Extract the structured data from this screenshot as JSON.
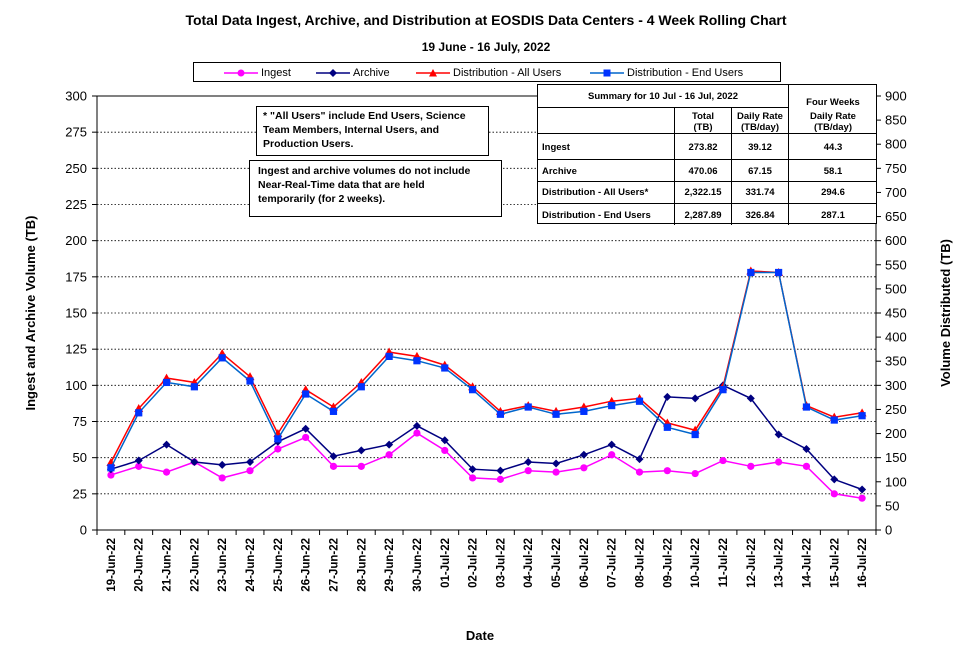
{
  "title": "Total Data Ingest, Archive, and  Distribution at EOSDIS Data Centers - 4 Week Rolling Chart",
  "subtitle": "19  June   -  16  July,  2022",
  "legend": {
    "ingest": "Ingest",
    "archive": "Archive",
    "dist_all": "Distribution - All Users",
    "dist_end": "Distribution - End Users"
  },
  "notes": {
    "note1": [
      "* \"All Users\" include End Users, Science",
      "Team Members,  Internal Users, and",
      "Production Users."
    ],
    "note2": [
      "Ingest and archive volumes do not include",
      "Near-Real-Time data that are held",
      "temporarily (for 2 weeks)."
    ]
  },
  "summary": {
    "title": "Summary for  10 Jul  -  16 Jul, 2022",
    "four_weeks": "Four Weeks",
    "col_total": [
      "Total",
      "(TB)"
    ],
    "col_daily": [
      "Daily Rate",
      "(TB/day)"
    ],
    "col_four": [
      "Daily Rate",
      "(TB/day)"
    ],
    "rows": [
      {
        "label": "Ingest",
        "total": "273.82",
        "daily": "39.12",
        "four": "44.3"
      },
      {
        "label": "Archive",
        "total": "470.06",
        "daily": "67.15",
        "four": "58.1"
      },
      {
        "label": "Distribution - All Users*",
        "total": "2,322.15",
        "daily": "331.74",
        "four": "294.6"
      },
      {
        "label": "Distribution - End Users",
        "total": "2,287.89",
        "daily": "326.84",
        "four": "287.1"
      }
    ]
  },
  "colors": {
    "ingest": "#FF00FF",
    "archive": "#000080",
    "dist_all_line": "#FF0000",
    "dist_all_marker": "#FF0000",
    "dist_end_line": "#0066CC",
    "dist_end_marker": "#0033FF"
  },
  "chart_data": {
    "type": "line",
    "xlabel": "Date",
    "ylabel": "Ingest and Archive Volume (TB)",
    "y2label": "Volume Distributed (TB)",
    "ylim": [
      0,
      300
    ],
    "y2lim": [
      0,
      900
    ],
    "yticks": [
      0,
      25,
      50,
      75,
      100,
      125,
      150,
      175,
      200,
      225,
      250,
      275,
      300
    ],
    "y2ticks": [
      0,
      50,
      100,
      150,
      200,
      250,
      300,
      350,
      400,
      450,
      500,
      550,
      600,
      650,
      700,
      750,
      800,
      850,
      900
    ],
    "grid": "horizontal dotted",
    "legend_position": "top",
    "categories": [
      "19-Jun-22",
      "20-Jun-22",
      "21-Jun-22",
      "22-Jun-22",
      "23-Jun-22",
      "24-Jun-22",
      "25-Jun-22",
      "26-Jun-22",
      "27-Jun-22",
      "28-Jun-22",
      "29-Jun-22",
      "30-Jun-22",
      "01-Jul-22",
      "02-Jul-22",
      "03-Jul-22",
      "04-Jul-22",
      "05-Jul-22",
      "06-Jul-22",
      "07-Jul-22",
      "08-Jul-22",
      "09-Jul-22",
      "10-Jul-22",
      "11-Jul-22",
      "12-Jul-22",
      "13-Jul-22",
      "14-Jul-22",
      "15-Jul-22",
      "16-Jul-22"
    ],
    "series": [
      {
        "name": "Ingest",
        "axis": "left",
        "values": [
          38,
          44,
          40,
          47,
          36,
          41,
          56,
          64,
          44,
          44,
          52,
          67,
          55,
          36,
          35,
          41,
          40,
          43,
          52,
          40,
          41,
          39,
          48,
          44,
          47,
          44,
          25,
          22
        ]
      },
      {
        "name": "Archive",
        "axis": "left",
        "values": [
          42,
          48,
          59,
          47,
          45,
          47,
          61,
          70,
          51,
          55,
          59,
          72,
          62,
          42,
          41,
          47,
          46,
          52,
          59,
          49,
          92,
          91,
          100,
          91,
          66,
          56,
          35,
          28
        ]
      },
      {
        "name": "Distribution - All Users",
        "axis": "right",
        "values": [
          140,
          252,
          315,
          306,
          366,
          318,
          200,
          291,
          255,
          306,
          369,
          360,
          342,
          297,
          246,
          258,
          246,
          255,
          267,
          273,
          222,
          207,
          297,
          537,
          534,
          258,
          234,
          243
        ]
      },
      {
        "name": "Distribution - End Users",
        "axis": "right",
        "values": [
          129,
          243,
          306,
          297,
          357,
          309,
          189,
          282,
          246,
          297,
          360,
          351,
          336,
          291,
          240,
          255,
          240,
          246,
          258,
          267,
          213,
          198,
          291,
          534,
          534,
          255,
          228,
          237
        ]
      }
    ]
  }
}
